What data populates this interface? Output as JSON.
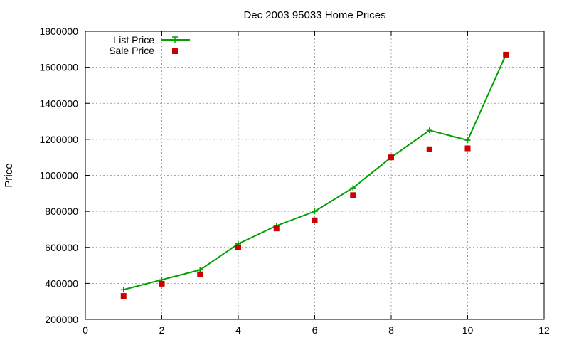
{
  "chart_data": {
    "type": "line",
    "title": "Dec 2003 95033 Home Prices",
    "xlabel": "",
    "ylabel": "Price",
    "xlim": [
      0,
      12
    ],
    "ylim": [
      200000,
      1800000
    ],
    "xticks": [
      "0",
      "2",
      "4",
      "6",
      "8",
      "10",
      "12"
    ],
    "yticks": [
      "200000",
      "400000",
      "600000",
      "800000",
      "1000000",
      "1200000",
      "1400000",
      "1600000",
      "1800000"
    ],
    "grid": true,
    "legend_position": "top-left",
    "series": [
      {
        "name": "List Price",
        "style": "line-with-plus-markers",
        "color": "#00a000",
        "x": [
          1,
          2,
          3,
          4,
          5,
          6,
          7,
          8,
          9,
          10,
          11
        ],
        "y": [
          365000,
          420000,
          475000,
          620000,
          720000,
          800000,
          930000,
          1100000,
          1250000,
          1195000,
          1670000
        ]
      },
      {
        "name": "Sale Price",
        "style": "square-points",
        "color": "#cc0000",
        "x": [
          1,
          2,
          3,
          4,
          5,
          6,
          7,
          8,
          9,
          10,
          11
        ],
        "y": [
          330000,
          398000,
          450000,
          600000,
          705000,
          750000,
          890000,
          1100000,
          1145000,
          1150000,
          1670000
        ]
      }
    ]
  }
}
